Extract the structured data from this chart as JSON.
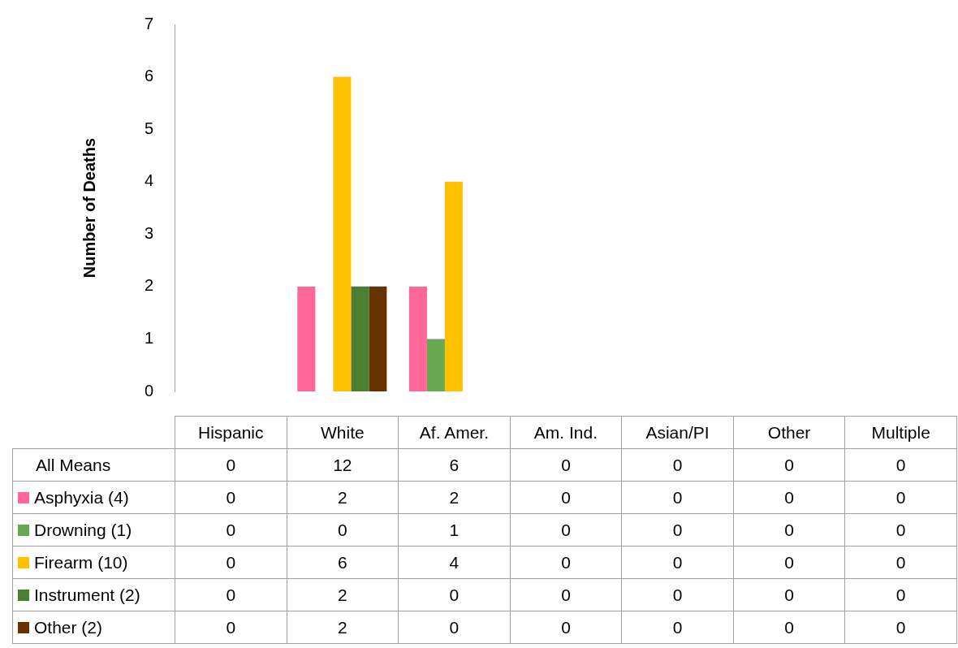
{
  "chart_data": {
    "type": "bar",
    "ylabel": "Number of Deaths",
    "categories": [
      "Hispanic",
      "White",
      "Af. Amer.",
      "Am. Ind.",
      "Asian/PI",
      "Other",
      "Multiple"
    ],
    "series": [
      {
        "name": "Asphyxia (4)",
        "color": "#ff6699",
        "values": [
          0,
          2,
          2,
          0,
          0,
          0,
          0
        ]
      },
      {
        "name": "Drowning (1)",
        "color": "#6aa84f",
        "values": [
          0,
          0,
          1,
          0,
          0,
          0,
          0
        ]
      },
      {
        "name": "Firearm (10)",
        "color": "#ffc000",
        "values": [
          0,
          6,
          4,
          0,
          0,
          0,
          0
        ]
      },
      {
        "name": "Instrument (2)",
        "color": "#4a7f32",
        "values": [
          0,
          2,
          0,
          0,
          0,
          0,
          0
        ]
      },
      {
        "name": "Other (2)",
        "color": "#663300",
        "values": [
          0,
          2,
          0,
          0,
          0,
          0,
          0
        ]
      }
    ],
    "annotations": [
      "All Means",
      "0",
      "12",
      "6",
      "0",
      "0",
      "0",
      "0"
    ],
    "ylim": [
      0,
      7
    ],
    "yticks": [
      0,
      1,
      2,
      3,
      4,
      5,
      6,
      7
    ],
    "grid": false,
    "legend": "bottom",
    "data_labels": true
  }
}
